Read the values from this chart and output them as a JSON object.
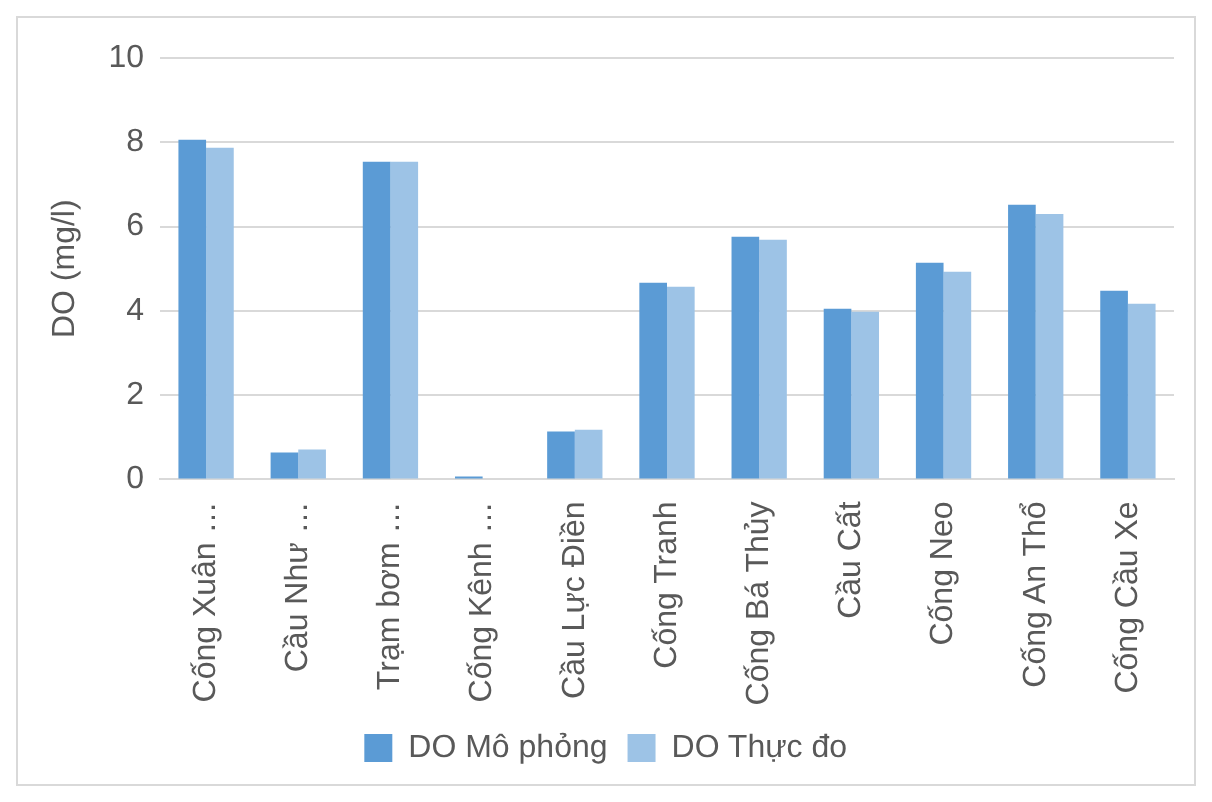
{
  "chart_data": {
    "type": "bar",
    "ylabel": "DO (mg/l)",
    "categories": [
      "Cống Xuân …",
      "Cầu Như …",
      "Trạm bơm …",
      "Cống Kênh …",
      "Cầu Lực Điền",
      "Cống Tranh",
      "Cống Bá Thủy",
      "Cầu Cất",
      "Cống Neo",
      "Cống An Thổ",
      "Cống Cầu Xe"
    ],
    "series": [
      {
        "name": "DO Mô phỏng",
        "color": "#5b9bd5",
        "values": [
          8.06,
          0.64,
          7.54,
          0.07,
          1.14,
          4.67,
          5.76,
          4.05,
          5.14,
          6.52,
          4.48
        ]
      },
      {
        "name": "DO Thực đo",
        "color": "#9dc3e6",
        "values": [
          7.87,
          0.71,
          7.54,
          0,
          1.18,
          4.57,
          5.69,
          3.98,
          4.93,
          6.3,
          4.17
        ]
      }
    ],
    "ylim": [
      0,
      10
    ],
    "yticks": [
      0,
      2,
      4,
      6,
      8,
      10
    ],
    "grid": "y",
    "legend": "bottom"
  }
}
